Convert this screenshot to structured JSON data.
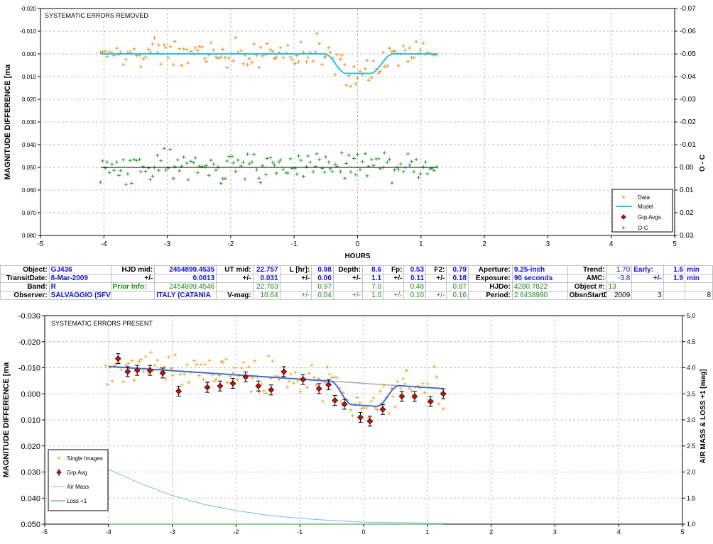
{
  "chart_data": [
    {
      "type": "scatter",
      "title": "SYSTEMATIC ERRORS REMOVED",
      "xlabel": "HOURS",
      "ylabel": "MAGNITUDE DIFFERENCE [ma",
      "y2label": "O - C",
      "xlim": [
        -5,
        5
      ],
      "ylim": [
        -0.02,
        0.08
      ],
      "y2lim": [
        -0.07,
        0.03
      ],
      "xticks": [
        "-5",
        "-4",
        "-3",
        "-2",
        "-1",
        "0",
        "1",
        "2",
        "3",
        "4",
        "5"
      ],
      "yticks": [
        "-0.020",
        "-0.010",
        "0.000",
        "0.010",
        "0.020",
        "0.030",
        "0.040",
        "0.050",
        "0.060",
        "0.070",
        "0.080"
      ],
      "y2ticks": [
        "-0.07",
        "-0.06",
        "-0.05",
        "-0.04",
        "-0.03",
        "-0.02",
        "-0.01",
        "0.00",
        "0.01",
        "0.02",
        "0.03"
      ],
      "grid": true,
      "legend": {
        "position": "bottom-right",
        "entries": [
          "Data",
          "Model",
          "Grp Avgs",
          "O-C"
        ]
      },
      "colors": {
        "data": "#f08a24",
        "model": "#21c5e3",
        "oc": "#2a9a2a",
        "ocline": "#000000"
      },
      "model": {
        "baseline": 0.0,
        "depth": 0.0086,
        "t1": -0.52,
        "t2": -0.18,
        "t3": 0.2,
        "t4": 0.56
      },
      "data_x_range": [
        -4.05,
        1.25
      ],
      "data_scatter_sd": 0.0045,
      "oc_offset": 0.05
    },
    {
      "type": "scatter",
      "title": "SYSTEMATIC ERRORS PRESENT",
      "ylabel": "MAGNITUDE DIFFERENCE [ma",
      "y2label": "AIR MASS & LOSS +1 [mag]",
      "xlim": [
        -5,
        5
      ],
      "ylim": [
        -0.03,
        0.05
      ],
      "y2lim": [
        5.0,
        1.0
      ],
      "xticks": [
        "-5",
        "-4",
        "-3",
        "-2",
        "-1",
        "0",
        "1",
        "2",
        "3",
        "4",
        "5"
      ],
      "yticks": [
        "-0.030",
        "-0.020",
        "-0.010",
        "0.000",
        "0.010",
        "0.020",
        "0.030",
        "0.040",
        "0.050"
      ],
      "y2ticks": [
        "5.0",
        "4.5",
        "4.0",
        "3.5",
        "3.0",
        "2.5",
        "2.0",
        "1.5",
        "1.0"
      ],
      "grid": true,
      "legend": {
        "position": "bottom-left",
        "entries": [
          "Single Images",
          "Grp Avg",
          "Air Mass",
          "Loss +1"
        ]
      },
      "colors": {
        "single": "#f5a020",
        "grpavg": "#c01010",
        "model": "#3a6fd8",
        "trend": "#a8a8a8",
        "airmass": "#7ab8f0",
        "loss": "#2a9a2a"
      },
      "trend": {
        "x": [
          -4.0,
          1.25
        ],
        "y": [
          -0.0105,
          -0.002
        ]
      },
      "grp_avgs": [
        {
          "x": -3.85,
          "y": -0.0135
        },
        {
          "x": -3.7,
          "y": -0.0085
        },
        {
          "x": -3.55,
          "y": -0.009
        },
        {
          "x": -3.35,
          "y": -0.009
        },
        {
          "x": -3.15,
          "y": -0.008
        },
        {
          "x": -2.9,
          "y": -0.001
        },
        {
          "x": -2.45,
          "y": -0.0025
        },
        {
          "x": -2.25,
          "y": -0.003
        },
        {
          "x": -2.05,
          "y": -0.004
        },
        {
          "x": -1.85,
          "y": -0.0065
        },
        {
          "x": -1.65,
          "y": -0.003
        },
        {
          "x": -1.45,
          "y": -0.0015
        },
        {
          "x": -1.25,
          "y": -0.0085
        },
        {
          "x": -0.95,
          "y": -0.0055
        },
        {
          "x": -0.7,
          "y": -0.002
        },
        {
          "x": -0.55,
          "y": -0.0035
        },
        {
          "x": -0.45,
          "y": 0.0025
        },
        {
          "x": -0.3,
          "y": 0.004
        },
        {
          "x": -0.05,
          "y": 0.009
        },
        {
          "x": 0.1,
          "y": 0.0105
        },
        {
          "x": 0.3,
          "y": 0.006
        },
        {
          "x": 0.6,
          "y": 0.001
        },
        {
          "x": 0.8,
          "y": 0.001
        },
        {
          "x": 1.05,
          "y": 0.003
        },
        {
          "x": 1.25,
          "y": 0.0
        }
      ],
      "airmass": {
        "x": [
          -4.0,
          -3.5,
          -3.0,
          -2.5,
          -2.0,
          -1.5,
          -1.0,
          -0.5,
          0.0,
          0.5,
          1.0,
          1.25
        ],
        "y": [
          2.05,
          1.78,
          1.55,
          1.38,
          1.26,
          1.17,
          1.11,
          1.07,
          1.04,
          1.03,
          1.02,
          1.02
        ]
      },
      "loss_y": 1.0
    }
  ],
  "info_table": [
    [
      "Object:",
      "GJ436",
      "HJD mid:",
      "2454899.4535",
      "UT mid:",
      "22.757",
      "L [hr]:",
      "0.98",
      "Depth:",
      "8.6",
      "Fp:",
      "0.53",
      "F2:",
      "0.79",
      "Aperture:",
      "9.25-inch",
      "Trend:",
      "1.70",
      "Early:",
      "1.6",
      "min"
    ],
    [
      "TransitDate:",
      "8-Mar-2009",
      "+/-",
      "0.0013",
      "+/-",
      "0.031",
      "+/-",
      "0.06",
      "+/-",
      "1.1",
      "+/-",
      "0.11",
      "+/-",
      "0.18",
      "Exposure:",
      "90 seconds",
      "AMC:",
      "-3.8",
      "+/-",
      "1.9",
      "min"
    ],
    [
      "Band:",
      "R",
      "Prior Info:",
      "2454899.4546",
      "",
      "22.783",
      "",
      "0.97",
      "",
      "7.0",
      "",
      "0.48",
      "",
      "0.87",
      "HJDo:",
      "4280.7822",
      "Object #:",
      "13",
      "",
      "",
      ""
    ],
    [
      "Observer:",
      "SALVAGGIO (SFV)",
      "",
      "ITALY (CATANIA",
      "V-mag:",
      "10.64",
      "+/-",
      "0.04",
      "+/-",
      "1.0",
      "+/-",
      "0.10",
      "+/-",
      "0.16",
      "Period:",
      "2.6438990",
      "ObsnStartDate:",
      "2009",
      "3",
      "",
      "8"
    ]
  ]
}
